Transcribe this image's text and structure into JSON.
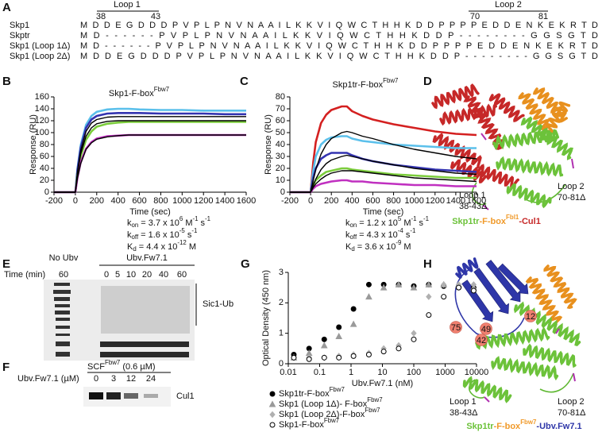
{
  "panel_a": {
    "label": "A",
    "loops": [
      {
        "name": "Loop 1",
        "start": "38",
        "end": "43"
      },
      {
        "name": "Loop 2",
        "start": "70",
        "end": "81"
      }
    ],
    "rows": [
      {
        "name": "Skp1",
        "sequence": "M D D E G D D D P V P L P N V N A A I L K K V I Q W C T H H K D D P P P P E D D E N K E K R T D"
      },
      {
        "name": "Skptr",
        "sequence": "M D - - - - - - P V P L P N V N A A I L K K V I Q W C T H H K D D P - - - - - - - - G G S G T D"
      },
      {
        "name": "Skp1 (Loop 1Δ)",
        "sequence": "M D - - - - - - P V P L P N V N A A I L K K V I Q W C T H H K D D P P P P E D D E N K E K R T D"
      },
      {
        "name": "Skp1 (Loop 2Δ)",
        "sequence": "M D D E G D D D P V P L P N V N A A I L K K V I Q W C T H H K D D P - - - - - - - - G G S G T D"
      }
    ]
  },
  "chart_data": [
    {
      "type": "line",
      "label": "B",
      "title": [
        "Skp1-F-box",
        "Fbw7"
      ],
      "xlabel": "Time (sec)",
      "ylabel": "Response (RU)",
      "x": [
        -200,
        -100,
        0,
        20,
        50,
        100,
        150,
        200,
        300,
        400,
        500,
        600,
        800,
        1000,
        1200,
        1400,
        1600
      ],
      "xlim": [
        -200,
        1600
      ],
      "xticks": [
        -200,
        0,
        200,
        400,
        600,
        800,
        1000,
        1200,
        1400,
        1600
      ],
      "ylim": [
        0,
        160
      ],
      "yticks": [
        0,
        20,
        40,
        60,
        80,
        100,
        120,
        140,
        160
      ],
      "series": [
        {
          "color": "#5bc0eb",
          "values": [
            0,
            0,
            0,
            40,
            79,
            113,
            128,
            135,
            139,
            140,
            140,
            139,
            138,
            138,
            137,
            137,
            137
          ]
        },
        {
          "color": "#3434b0",
          "values": [
            0,
            0,
            0,
            38,
            75,
            108,
            122,
            128,
            132,
            133,
            133,
            133,
            132,
            132,
            132,
            131,
            131
          ]
        },
        {
          "color": "#7ccd3c",
          "values": [
            0,
            0,
            0,
            30,
            60,
            88,
            102,
            110,
            115,
            117,
            118,
            118,
            118,
            118,
            118,
            118,
            118
          ]
        },
        {
          "color": "#c030c0",
          "values": [
            0,
            0,
            0,
            25,
            50,
            73,
            84,
            90,
            94,
            95,
            96,
            96,
            96,
            96,
            96,
            96,
            96
          ]
        },
        {
          "color": "#000000",
          "values": [
            0,
            0,
            0,
            35,
            70,
            102,
            116,
            122,
            126,
            127,
            127,
            127,
            127,
            127,
            127,
            127,
            127
          ]
        },
        {
          "color": "#000000",
          "values": [
            0,
            0,
            0,
            32,
            64,
            94,
            108,
            115,
            119,
            120,
            120,
            120,
            120,
            120,
            120,
            120,
            120
          ]
        },
        {
          "color": "#000000",
          "values": [
            0,
            0,
            0,
            24,
            48,
            72,
            83,
            89,
            93,
            95,
            96,
            96,
            96,
            96,
            96,
            96,
            96
          ]
        }
      ],
      "kinetics": [
        [
          "k",
          "on",
          "= 3.7 x 10",
          "6",
          "M",
          "-1",
          "s",
          "-1"
        ],
        [
          "k",
          "off",
          "= 1.6 x 10",
          "-5",
          "s",
          "-1"
        ],
        [
          "K",
          "d",
          "= 4.4 x 10",
          "-12",
          "M"
        ]
      ]
    },
    {
      "type": "line",
      "label": "C",
      "title": [
        "Skp1tr-F-box",
        "Fbw7"
      ],
      "xlabel": "Time (sec)",
      "ylabel": "Response (RU)",
      "x": [
        -200,
        -100,
        0,
        25,
        50,
        100,
        150,
        200,
        300,
        350,
        400,
        500,
        600,
        800,
        1000,
        1200,
        1400,
        1600
      ],
      "xlim": [
        -200,
        1600
      ],
      "xticks": [
        -200,
        0,
        200,
        400,
        600,
        800,
        1000,
        1200,
        1400,
        1600
      ],
      "ylim": [
        0,
        80
      ],
      "yticks": [
        0,
        10,
        20,
        30,
        40,
        50,
        60,
        70,
        80
      ],
      "series": [
        {
          "color": "#d42020",
          "values": [
            0,
            0,
            0,
            25,
            42,
            58,
            65,
            69,
            72,
            72,
            68,
            64,
            61,
            57,
            54,
            51,
            49,
            48
          ]
        },
        {
          "color": "#5bc0eb",
          "values": [
            0,
            0,
            0,
            18,
            30,
            40,
            44,
            46,
            47,
            47,
            45,
            43,
            42,
            40,
            39,
            38,
            37,
            37
          ]
        },
        {
          "color": "#3434b0",
          "values": [
            0,
            0,
            0,
            12,
            20,
            28,
            31,
            33,
            33,
            33,
            31,
            28,
            26,
            23,
            21,
            19,
            18,
            17
          ]
        },
        {
          "color": "#7ccd3c",
          "values": [
            0,
            0,
            0,
            6,
            10,
            14,
            17,
            18,
            20,
            20,
            19,
            18,
            17,
            15,
            14,
            13,
            12,
            12
          ]
        },
        {
          "color": "#c030c0",
          "values": [
            0,
            0,
            0,
            3,
            5,
            7,
            8,
            9,
            10,
            10,
            9,
            9,
            8,
            7,
            6,
            6,
            5,
            5
          ]
        },
        {
          "color": "#000000",
          "values": [
            0,
            0,
            0,
            10,
            19,
            32,
            40,
            45,
            50,
            51,
            50,
            47,
            45,
            40,
            36,
            33,
            30,
            28
          ]
        },
        {
          "color": "#000000",
          "values": [
            0,
            0,
            0,
            6,
            11,
            19,
            24,
            27,
            30,
            31,
            30,
            28,
            26,
            23,
            20,
            18,
            16,
            15
          ]
        },
        {
          "color": "#000000",
          "values": [
            0,
            0,
            0,
            4,
            7,
            11,
            14,
            16,
            18,
            18,
            18,
            17,
            16,
            14,
            12,
            11,
            10,
            9
          ]
        }
      ],
      "kinetics": [
        [
          "k",
          "on",
          "= 1.2 x 10",
          "5",
          "M",
          "-1",
          "s",
          "-1"
        ],
        [
          "k",
          "off",
          "= 4.3 x 10",
          "-4",
          "s",
          "-1"
        ],
        [
          "K",
          "d",
          "= 3.6 x 10",
          "-9",
          "M"
        ]
      ]
    },
    {
      "type": "scatter",
      "label": "G",
      "xlabel": "Ubv.Fw7.1 (nM)",
      "ylabel": "Optical Density (450 nm)",
      "xscale": "log",
      "x": [
        0.015,
        0.046,
        0.14,
        0.41,
        1.2,
        3.7,
        11,
        33,
        100,
        300,
        900,
        2700,
        8100
      ],
      "xlim": [
        0.01,
        10000
      ],
      "xticks": [
        0.01,
        0.1,
        1,
        10,
        100,
        1000,
        10000
      ],
      "ylim": [
        0,
        3
      ],
      "yticks": [
        0,
        1,
        2,
        3
      ],
      "series": [
        {
          "name": "Skp1tr-F-box",
          "name_sup": "Fbw7",
          "color": "#000000",
          "marker": "circle",
          "filled": true,
          "values": [
            0.3,
            0.5,
            0.8,
            1.2,
            1.8,
            2.6,
            2.6,
            2.6,
            2.55,
            2.6,
            2.55,
            2.5,
            2.5
          ]
        },
        {
          "name": "Skp1 (Loop 1Δ)- F-box",
          "name_sup": "Fbw7",
          "color": "#9a9a9a",
          "marker": "triangle",
          "filled": true,
          "values": [
            0.2,
            0.35,
            0.6,
            0.9,
            1.3,
            2.2,
            2.5,
            2.6,
            2.5,
            2.6,
            2.6,
            2.6,
            2.5
          ]
        },
        {
          "name": "Skp1 (Loop 2Δ)-F-box",
          "name_sup": "Fbw7",
          "color": "#b0b0b0",
          "marker": "diamond",
          "filled": true,
          "values": [
            0.2,
            0.2,
            0.2,
            0.25,
            0.3,
            0.35,
            0.5,
            0.6,
            1.0,
            2.2,
            2.6,
            2.6,
            2.6
          ]
        },
        {
          "name": "Skp1-F-box",
          "name_sup": "Fbw7",
          "color": "#000000",
          "marker": "circle",
          "filled": false,
          "values": [
            0.2,
            0.15,
            0.2,
            0.2,
            0.25,
            0.3,
            0.4,
            0.5,
            0.8,
            1.6,
            2.2,
            2.5,
            2.4
          ]
        }
      ]
    }
  ],
  "panel_d": {
    "label": "D",
    "loop1": [
      "Loop 1",
      "38-43Δ"
    ],
    "loop2": [
      "Loop 2",
      "70-81Δ"
    ],
    "caption": [
      "Skp1tr",
      "-F-box",
      "Fbl1",
      "-Cul1"
    ]
  },
  "panel_e": {
    "label": "E",
    "no_ubv": "No Ubv",
    "ubv": "Ubv.Fw7.1",
    "time_label": "Time (min)",
    "no_ubv_time": "60",
    "times": [
      "0",
      "5",
      "10",
      "20",
      "40",
      "60"
    ],
    "band": "Sic1-Ub"
  },
  "panel_f": {
    "label": "F",
    "header": [
      "SCF",
      "Fbw7",
      "(0.6 µM)"
    ],
    "ubv_label": "Ubv.Fw7.1 (µM)",
    "doses": [
      "0",
      "3",
      "12",
      "24"
    ],
    "band": "Cul1"
  },
  "panel_h": {
    "label": "H",
    "residues": [
      "75",
      "49",
      "42",
      "12"
    ],
    "loop1": [
      "Loop 1",
      "38-43Δ"
    ],
    "loop2": [
      "Loop 2",
      "70-81Δ"
    ],
    "caption": [
      "Skp1tr",
      "-F-box",
      "Fbw7",
      "-Ubv.Fw7.1"
    ]
  }
}
